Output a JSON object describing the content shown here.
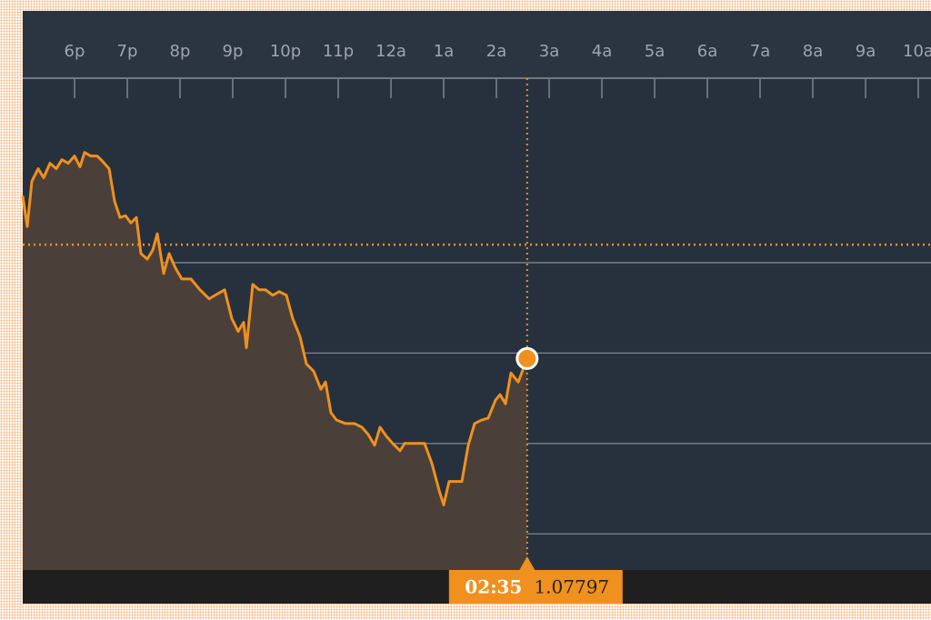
{
  "chart_data": {
    "type": "area",
    "x": [
      17.017,
      17.103,
      17.19,
      17.31,
      17.414,
      17.534,
      17.655,
      17.759,
      17.879,
      18.0,
      18.103,
      18.19,
      18.31,
      18.431,
      18.534,
      18.655,
      18.759,
      18.862,
      18.966,
      19.069,
      19.172,
      19.259,
      19.379,
      19.483,
      19.569,
      19.69,
      19.793,
      19.914,
      20.034,
      20.207,
      20.379,
      20.552,
      20.724,
      20.845,
      20.983,
      21.103,
      21.207,
      21.259,
      21.379,
      21.5,
      21.621,
      21.759,
      21.879,
      22.017,
      22.138,
      22.276,
      22.397,
      22.534,
      22.672,
      22.759,
      22.862,
      22.966,
      23.138,
      23.31,
      23.448,
      23.569,
      23.69,
      23.793,
      23.914,
      24.034,
      24.172,
      24.259,
      24.379,
      24.517,
      24.638,
      24.776,
      24.914,
      25.0,
      25.103,
      25.241,
      25.345,
      25.466,
      25.586,
      25.724,
      25.845,
      25.983,
      26.069,
      26.172,
      26.276,
      26.414,
      26.583
    ],
    "series": [
      {
        "color": "#f0901e",
        "values": [
          1.07887,
          1.0787,
          1.07895,
          1.07902,
          1.07897,
          1.07905,
          1.07902,
          1.07907,
          1.07905,
          1.07909,
          1.07903,
          1.07911,
          1.07909,
          1.07909,
          1.07906,
          1.07902,
          1.07884,
          1.07875,
          1.07876,
          1.07872,
          1.07875,
          1.07855,
          1.07852,
          1.07857,
          1.07866,
          1.07844,
          1.07855,
          1.07847,
          1.07841,
          1.07841,
          1.07835,
          1.0783,
          1.07833,
          1.07835,
          1.07819,
          1.07812,
          1.07817,
          1.07803,
          1.07838,
          1.07835,
          1.07835,
          1.07832,
          1.07834,
          1.07832,
          1.07819,
          1.07809,
          1.07794,
          1.0779,
          1.0778,
          1.07784,
          1.07767,
          1.07763,
          1.07761,
          1.07761,
          1.07759,
          1.07755,
          1.07749,
          1.07759,
          1.07754,
          1.0775,
          1.07746,
          1.0775,
          1.0775,
          1.0775,
          1.0775,
          1.07739,
          1.07724,
          1.07716,
          1.07729,
          1.07729,
          1.07729,
          1.07749,
          1.07761,
          1.07763,
          1.07764,
          1.07774,
          1.07777,
          1.07772,
          1.07789,
          1.07784,
          1.07797
        ]
      }
    ],
    "xlim": [
      17,
      34.25
    ],
    "xticks": [
      {
        "value": 18,
        "label": "6p"
      },
      {
        "value": 19,
        "label": "7p"
      },
      {
        "value": 20,
        "label": "8p"
      },
      {
        "value": 21,
        "label": "9p"
      },
      {
        "value": 22,
        "label": "10p"
      },
      {
        "value": 23,
        "label": "11p"
      },
      {
        "value": 24,
        "label": "12a"
      },
      {
        "value": 25,
        "label": "1a"
      },
      {
        "value": 26,
        "label": "2a"
      },
      {
        "value": 27,
        "label": "3a"
      },
      {
        "value": 28,
        "label": "4a"
      },
      {
        "value": 29,
        "label": "5a"
      },
      {
        "value": 30,
        "label": "6a"
      },
      {
        "value": 31,
        "label": "7a"
      },
      {
        "value": 32,
        "label": "8a"
      },
      {
        "value": 33,
        "label": "9a"
      },
      {
        "value": 34,
        "label": "10a"
      }
    ],
    "ylim": [
      1.0768,
      1.0794
    ],
    "yticks": [
      1.077,
      1.0775,
      1.078,
      1.0785
    ],
    "grid": true,
    "reference_line": 1.0786,
    "cursor": {
      "x": 26.583,
      "time": "02:35",
      "value": 1.07797
    }
  }
}
